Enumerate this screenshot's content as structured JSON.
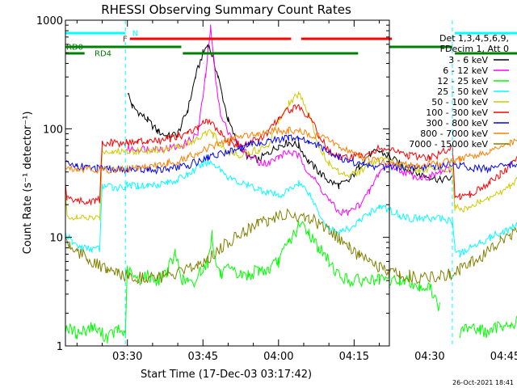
{
  "chart_data": {
    "type": "line",
    "title": "RHESSI Observing Summary Count Rates",
    "xlabel": "Start Time (17-Dec-03 03:17:42)",
    "ylabel": "Count Rate (s⁻¹ detector⁻¹)",
    "yscale": "log",
    "ylim": [
      1,
      1000
    ],
    "xlim_min": [
      17.7,
      82
    ],
    "xticks": [
      {
        "label": "03:30",
        "value": 30
      },
      {
        "label": "03:45",
        "value": 45
      },
      {
        "label": "04:00",
        "value": 60
      },
      {
        "label": "04:15",
        "value": 75
      },
      {
        "label": "04:30",
        "value": 90
      },
      {
        "label": "04:45",
        "value": 105
      }
    ],
    "yticks": [
      {
        "label": "1",
        "value": 1
      },
      {
        "label": "10",
        "value": 10
      },
      {
        "label": "100",
        "value": 100
      },
      {
        "label": "1000",
        "value": 1000
      }
    ],
    "legend_header": [
      "Det 1,3,4,5,6,9,",
      "FDecim 1, Att 0"
    ],
    "series": [
      {
        "name": "3 - 6 keV",
        "color": "#000000",
        "x": [
          17.7,
          29.6,
          30,
          31,
          34,
          36,
          38,
          40,
          42,
          43.5,
          45,
          46,
          47,
          48,
          50,
          52,
          54,
          56,
          58,
          60,
          62,
          64,
          66,
          68,
          70,
          72,
          74,
          76,
          78,
          80,
          82,
          84,
          86,
          88,
          90,
          92,
          94.5,
          95,
          96,
          98,
          100,
          102,
          104,
          106,
          108,
          109,
          110,
          111,
          112
        ],
        "y": [
          null,
          null,
          220,
          160,
          120,
          95,
          85,
          90,
          150,
          300,
          500,
          600,
          450,
          300,
          120,
          70,
          55,
          52,
          60,
          70,
          75,
          70,
          50,
          40,
          33,
          30,
          33,
          45,
          58,
          62,
          55,
          48,
          42,
          38,
          36,
          34,
          35,
          null,
          null,
          null,
          null,
          null,
          null,
          null,
          null,
          null,
          null,
          null,
          null
        ]
      },
      {
        "name": "6 - 12 keV",
        "color": "#ff00ff",
        "x": [
          17.7,
          29.6,
          30,
          34,
          38,
          41,
          44,
          45.5,
          46.5,
          47.5,
          48.5,
          50,
          52,
          54,
          56,
          58,
          60,
          62,
          64,
          66,
          68,
          70,
          72,
          74,
          76,
          78,
          80,
          82,
          84,
          86,
          88,
          90,
          92,
          94.5
        ],
        "y": [
          null,
          null,
          65,
          66,
          66,
          70,
          90,
          300,
          850,
          300,
          130,
          95,
          72,
          58,
          50,
          48,
          55,
          62,
          56,
          40,
          30,
          22,
          17,
          17,
          20,
          26,
          40,
          48,
          42,
          38,
          36,
          36,
          40,
          42
        ]
      },
      {
        "name": "12 - 25 keV",
        "color": "#00ff00",
        "x": [
          17.7,
          20,
          23,
          26,
          28,
          29.6,
          30,
          32,
          34,
          36,
          38,
          39.5,
          41,
          42,
          43,
          44.5,
          46,
          46.8,
          47.5,
          48.5,
          50,
          52,
          54,
          56,
          58,
          60,
          62,
          64,
          65,
          66,
          68,
          70,
          72,
          74,
          76,
          78,
          80,
          82,
          84,
          86,
          88,
          90,
          92,
          94,
          96,
          98,
          100,
          102,
          104,
          106,
          108,
          109,
          110,
          111,
          112
        ],
        "y": [
          1.5,
          1.3,
          1.5,
          1.2,
          1.4,
          1.3,
          5,
          4,
          4.5,
          4,
          5,
          7,
          4,
          4,
          3.5,
          5,
          6,
          11,
          6,
          4.5,
          5,
          4.5,
          4.5,
          5,
          5,
          6,
          9,
          12.5,
          13,
          11,
          8,
          6,
          4.5,
          4,
          4,
          4,
          4,
          4,
          4,
          4,
          3.5,
          3.5,
          2.2,
          null,
          1.3,
          1.6,
          1.4,
          1.3,
          1.6,
          1.5,
          1.8,
          2,
          1.6,
          3,
          1.4
        ]
      },
      {
        "name": "25 - 50 keV",
        "color": "#00ffff",
        "x": [
          17.7,
          19,
          21,
          23,
          24.5,
          25,
          27,
          29.5,
          29.6,
          30,
          32,
          34,
          36,
          38,
          40,
          42,
          44,
          46,
          48,
          50,
          52,
          54,
          56,
          58,
          60,
          62,
          64,
          66,
          68,
          70,
          72,
          74,
          76,
          78,
          80,
          82,
          84,
          86,
          88,
          90,
          92,
          94.5,
          95,
          96,
          98,
          100,
          102,
          104,
          106,
          108,
          110,
          111,
          112
        ],
        "y": [
          11,
          9,
          8,
          7.8,
          7.8,
          30,
          29,
          29,
          29,
          30,
          30,
          30,
          31,
          32,
          34,
          38,
          44,
          50,
          45,
          36,
          32,
          30,
          28,
          26,
          24,
          27,
          32,
          26,
          17,
          12,
          11,
          12,
          14,
          17,
          19,
          18,
          16,
          15,
          15,
          15,
          15,
          14,
          8,
          7,
          8,
          9,
          10,
          11,
          12,
          13,
          14,
          17,
          20
        ]
      },
      {
        "name": "50 - 100 keV",
        "color": "#cccc00",
        "x": [
          17.7,
          18,
          20,
          22,
          23.5,
          24.5,
          25,
          27,
          29.6,
          30,
          32,
          34,
          36,
          38,
          40,
          42,
          44,
          45.5,
          47,
          48.5,
          50,
          52,
          54,
          56,
          58,
          60,
          62,
          64,
          66,
          68,
          70,
          72,
          74,
          76,
          78,
          80,
          82,
          84,
          86,
          88,
          90,
          92,
          94.5,
          95,
          96,
          98,
          100,
          102,
          104,
          106,
          108,
          110,
          111,
          112
        ],
        "y": [
          25,
          16,
          15,
          15,
          15,
          15,
          63,
          62,
          62,
          63,
          63,
          63,
          64,
          65,
          68,
          74,
          82,
          95,
          88,
          72,
          60,
          58,
          60,
          64,
          72,
          120,
          175,
          210,
          140,
          70,
          48,
          40,
          38,
          40,
          46,
          52,
          50,
          47,
          44,
          42,
          42,
          43,
          43,
          19,
          18,
          19,
          21,
          23,
          26,
          30,
          38,
          44,
          36,
          30
        ]
      },
      {
        "name": "100 - 300 keV",
        "color": "#ff0000",
        "x": [
          17.7,
          18,
          20,
          22,
          23.5,
          24.5,
          25,
          27,
          29.6,
          30,
          32,
          34,
          36,
          38,
          40,
          42,
          44,
          45.5,
          47,
          48.5,
          50,
          52,
          54,
          56,
          58,
          60,
          62,
          64,
          66,
          68,
          70,
          72,
          74,
          76,
          78,
          80,
          82,
          84,
          86,
          88,
          90,
          92,
          94.5,
          95,
          96,
          98,
          100,
          102,
          104,
          106,
          108,
          110,
          111,
          112
        ],
        "y": [
          30,
          23,
          22,
          21,
          22,
          22,
          75,
          74,
          74,
          75,
          76,
          76,
          77,
          80,
          84,
          92,
          102,
          118,
          110,
          90,
          76,
          72,
          75,
          80,
          92,
          128,
          150,
          160,
          130,
          88,
          62,
          55,
          54,
          56,
          60,
          66,
          64,
          60,
          56,
          55,
          55,
          58,
          70,
          24,
          24,
          25,
          28,
          32,
          38,
          45,
          58,
          66,
          55,
          44
        ]
      },
      {
        "name": "300 - 800 keV",
        "color": "#0000ff",
        "x": [
          17.7,
          20,
          22,
          24,
          26,
          28,
          30,
          32,
          34,
          36,
          38,
          40,
          42,
          44,
          46,
          48,
          50,
          52,
          54,
          56,
          58,
          60,
          62,
          64,
          66,
          68,
          70,
          72,
          74,
          76,
          78,
          80,
          82,
          84,
          86,
          88,
          90,
          92,
          94,
          96,
          98,
          100,
          102,
          104,
          106,
          108,
          110,
          111,
          112
        ],
        "y": [
          48,
          46,
          44,
          43,
          42,
          42,
          42,
          42,
          42,
          42,
          43,
          44,
          46,
          50,
          55,
          58,
          62,
          66,
          70,
          74,
          78,
          80,
          82,
          80,
          76,
          70,
          62,
          55,
          50,
          48,
          46,
          45,
          44,
          44,
          44,
          44,
          45,
          46,
          47,
          46,
          44,
          43,
          43,
          44,
          46,
          50,
          55,
          62,
          52
        ]
      },
      {
        "name": "800 - 7000 keV",
        "color": "#ff8000",
        "x": [
          17.7,
          20,
          22,
          24,
          26,
          28,
          30,
          32,
          34,
          36,
          38,
          40,
          42,
          44,
          46,
          48,
          50,
          52,
          54,
          56,
          58,
          60,
          62,
          64,
          66,
          68,
          70,
          72,
          74,
          76,
          78,
          80,
          82,
          84,
          86,
          88,
          90,
          92,
          94,
          96,
          98,
          100,
          102,
          104,
          106,
          108,
          110,
          112
        ],
        "y": [
          44,
          43,
          43,
          42,
          42,
          42,
          43,
          44,
          45,
          46,
          48,
          50,
          55,
          60,
          66,
          72,
          78,
          84,
          88,
          92,
          95,
          96,
          96,
          94,
          90,
          85,
          78,
          70,
          62,
          56,
          52,
          50,
          48,
          47,
          46,
          46,
          47,
          48,
          50,
          52,
          55,
          58,
          63,
          68,
          73,
          77,
          78,
          78
        ]
      },
      {
        "name": "7000 - 15000 keV",
        "color": "#808000",
        "x": [
          17.7,
          18.5,
          20,
          22,
          24,
          26,
          28,
          30,
          32,
          34,
          36,
          38,
          40,
          42,
          44,
          46,
          48,
          50,
          52,
          54,
          56,
          58,
          60,
          62,
          64,
          66,
          68,
          70,
          72,
          74,
          76,
          78,
          80,
          82,
          84,
          86,
          88,
          90,
          92,
          94,
          96,
          98,
          100,
          102,
          104,
          106,
          108,
          110,
          111,
          112
        ],
        "y": [
          10,
          8.5,
          7.5,
          6.5,
          5.6,
          5,
          4.6,
          4.4,
          4.3,
          4.3,
          4.3,
          4.4,
          4.6,
          5,
          5.6,
          6.5,
          7.6,
          9,
          10.5,
          12,
          13.5,
          14.5,
          15.5,
          16,
          15.8,
          15,
          13.5,
          11.5,
          9.5,
          8,
          6.8,
          5.8,
          5.2,
          4.8,
          4.5,
          4.4,
          4.3,
          4.3,
          4.4,
          4.6,
          5,
          5.6,
          6.6,
          7.8,
          9.2,
          10.6,
          12,
          13,
          12.5,
          11.5
        ]
      }
    ],
    "state_bars": [
      {
        "name": "N",
        "color": "#00ffff",
        "rows": "night",
        "segments": [
          [
            17.7,
            29.6
          ],
          [
            95,
            111.7
          ]
        ]
      },
      {
        "name": "F",
        "color": "#ff0000",
        "rows": "flare",
        "segments": [
          [
            30.5,
            62.5
          ],
          [
            64.5,
            82.5
          ]
        ]
      },
      {
        "name": "RD0",
        "color": "#008000",
        "rows": "rd0",
        "segments": [
          [
            17.7,
            40.7
          ],
          [
            82,
            94.5
          ]
        ]
      },
      {
        "name": "RD4",
        "color": "#008000",
        "rows": "rd4",
        "segments": [
          [
            17.7,
            21.5
          ],
          [
            41,
            75.8
          ],
          [
            95,
            111.7
          ]
        ]
      }
    ],
    "saa_lines": [
      29.6,
      94.5,
      111.7
    ]
  },
  "footer": {
    "timestamp": "26-Oct-2021 18:41"
  }
}
